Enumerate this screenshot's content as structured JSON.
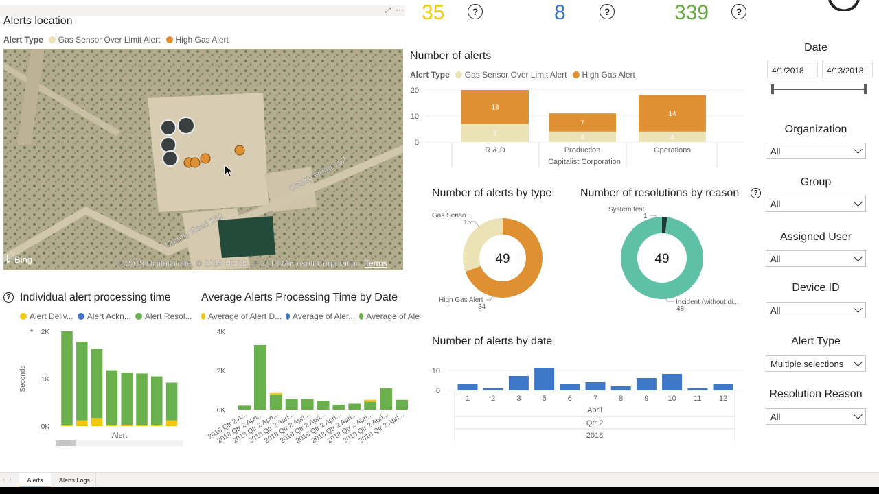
{
  "kpis": [
    {
      "value": "35",
      "color": "#f2c811"
    },
    {
      "value": "8",
      "color": "#3f78c8"
    },
    {
      "value": "339",
      "color": "#68a843"
    }
  ],
  "colors": {
    "gas_sensor": "#ebe2b5",
    "high_gas": "#de9032",
    "blue": "#3f78c8",
    "green": "#6ab04c",
    "yellow": "#f2c811",
    "teal": "#5fc0a8",
    "dark": "#1f3d36"
  },
  "map": {
    "title": "Alerts location",
    "legend_label": "Alert Type",
    "legend_items": [
      "Gas Sensor Over Limit Alert",
      "High Gas Alert"
    ],
    "bing_label": "Bing",
    "copyright": "© 2019 DigitalGlobe, © 2019 HERE, © 2019 Microsoft Corporation",
    "terms": "Terms",
    "road_label_1": "County Road 162",
    "road_label_2": "County Road 162"
  },
  "alerts_chart": {
    "title": "Number of alerts",
    "legend_label": "Alert Type",
    "legend_items": [
      "Gas Sensor Over Limit Alert",
      "High Gas Alert"
    ],
    "parent_label": "Capitalist Corporation",
    "chart_data": {
      "type": "bar",
      "stacked": true,
      "categories": [
        "R & D",
        "Production",
        "Operations"
      ],
      "series": [
        {
          "name": "Gas Sensor Over Limit Alert",
          "values": [
            7,
            4,
            4
          ]
        },
        {
          "name": "High Gas Alert",
          "values": [
            13,
            7,
            14
          ]
        }
      ],
      "yticks": [
        "0",
        "10",
        "20"
      ],
      "ylim": [
        0,
        20
      ]
    }
  },
  "by_type": {
    "title": "Number of alerts by type",
    "center": "49",
    "label_a": "Gas Senso...",
    "value_a": "15",
    "label_b": "High Gas Alert",
    "value_b": "34",
    "chart_data": {
      "type": "pie",
      "categories": [
        "Gas Senso...",
        "High Gas Alert"
      ],
      "values": [
        15,
        34
      ]
    }
  },
  "by_reason": {
    "title": "Number of resolutions by reason",
    "center": "49",
    "label_a": "System test",
    "value_a": "1",
    "label_b": "Incident (without di...",
    "value_b": "48",
    "chart_data": {
      "type": "pie",
      "categories": [
        "System test",
        "Incident (without di..."
      ],
      "values": [
        1,
        48
      ]
    }
  },
  "by_date": {
    "title": "Number of alerts by date",
    "level_month": "April",
    "level_quarter": "Qtr 2",
    "level_year": "2018",
    "chart_data": {
      "type": "bar",
      "categories": [
        "1",
        "2",
        "3",
        "5",
        "6",
        "7",
        "8",
        "9",
        "10",
        "11",
        "12"
      ],
      "values": [
        3,
        1,
        7,
        11,
        3,
        4,
        2,
        6,
        8,
        1,
        3
      ],
      "yticks": [
        "0",
        "10"
      ],
      "ylim": [
        0,
        12
      ]
    }
  },
  "processing": {
    "title": "Individual alert processing time",
    "legend_items": [
      "Alert Deliv...",
      "Alert Ackn...",
      "Alert Resol..."
    ],
    "ylabel": "Seconds",
    "xlabel": "Alert",
    "yticks": [
      "0K",
      "1K",
      "2K"
    ],
    "chart_data": {
      "type": "bar",
      "stacked": true,
      "series": [
        {
          "name": "Alert Deliv...",
          "values": [
            20,
            120,
            170,
            20,
            20,
            20,
            20,
            120
          ]
        },
        {
          "name": "Alert Ackn...",
          "values": [
            0,
            0,
            0,
            0,
            0,
            0,
            0,
            0
          ]
        },
        {
          "name": "Alert Resol...",
          "values": [
            1980,
            1660,
            1460,
            1160,
            1110,
            1090,
            1030,
            800
          ]
        }
      ],
      "ylim": [
        0,
        2000
      ]
    }
  },
  "avg_processing": {
    "title": "Average Alerts Processing Time by Date",
    "legend_items": [
      "Average of Alert D...",
      "Average of Aler...",
      "Average of Ale"
    ],
    "yticks": [
      "0K",
      "2K",
      "4K"
    ],
    "xticks": [
      "2018 Qtr 2 A...",
      "2018 Qtr 2 Apri...",
      "2018 Qtr 2 Apri...",
      "2018 Qtr 2 Apri...",
      "2018 Qtr 2 Apri...",
      "2018 Qtr 2 Apri...",
      "2018 Qtr 2 Apri...",
      "2018 Qtr 2 Apri...",
      "2018 Qtr 2 Apri...",
      "2018 Qtr 2 Apri...",
      "2018 Qtr 2 Apri..."
    ],
    "chart_data": {
      "type": "bar",
      "stacked": true,
      "series": [
        {
          "name": "Average of Alert D...",
          "values": [
            0,
            0,
            100,
            0,
            0,
            0,
            0,
            0,
            100,
            0,
            0
          ]
        },
        {
          "name": "Average of Aler...",
          "values": [
            0,
            0,
            0,
            0,
            0,
            0,
            0,
            0,
            0,
            0,
            0
          ]
        },
        {
          "name": "Average of Ale",
          "values": [
            200,
            3300,
            750,
            550,
            550,
            450,
            250,
            300,
            400,
            1100,
            500
          ]
        }
      ],
      "ylim": [
        0,
        4000
      ]
    }
  },
  "slicers": {
    "date": {
      "title": "Date",
      "start": "4/1/2018",
      "end": "4/13/2018"
    },
    "organization": {
      "title": "Organization",
      "value": "All"
    },
    "group": {
      "title": "Group",
      "value": "All"
    },
    "assigned_user": {
      "title": "Assigned User",
      "value": "All"
    },
    "device_id": {
      "title": "Device ID",
      "value": "All"
    },
    "alert_type": {
      "title": "Alert Type",
      "value": "Multiple selections"
    },
    "resolution_reason": {
      "title": "Resolution Reason",
      "value": "All"
    }
  },
  "tabs": [
    "Alerts",
    "Alerts Logs"
  ],
  "qmark": "?"
}
